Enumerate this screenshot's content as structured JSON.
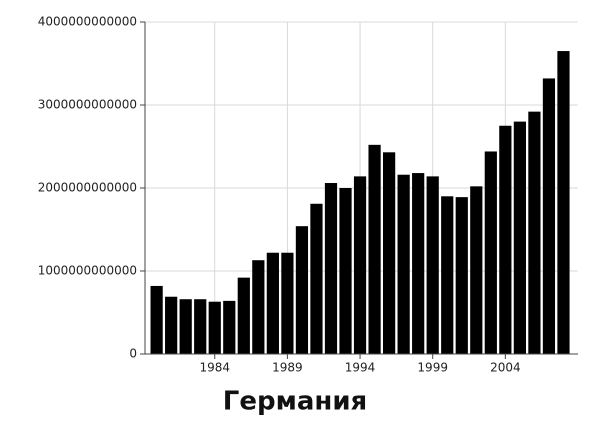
{
  "chart_data": {
    "type": "bar",
    "title": "Германия",
    "x": [
      1980,
      1981,
      1982,
      1983,
      1984,
      1985,
      1986,
      1987,
      1988,
      1989,
      1990,
      1991,
      1992,
      1993,
      1994,
      1995,
      1996,
      1997,
      1998,
      1999,
      2000,
      2001,
      2002,
      2003,
      2004,
      2005,
      2006,
      2007,
      2008
    ],
    "values": [
      820000000000,
      690000000000,
      660000000000,
      660000000000,
      630000000000,
      640000000000,
      920000000000,
      1130000000000,
      1220000000000,
      1220000000000,
      1540000000000,
      1810000000000,
      2060000000000,
      2000000000000,
      2140000000000,
      2520000000000,
      2430000000000,
      2160000000000,
      2180000000000,
      2140000000000,
      1900000000000,
      1890000000000,
      2020000000000,
      2440000000000,
      2750000000000,
      2800000000000,
      2920000000000,
      3320000000000,
      3650000000000
    ],
    "color": "#000000",
    "xlim": [
      1979.2,
      2009
    ],
    "xticks": [
      1984,
      1989,
      1994,
      1999,
      2004
    ],
    "ylim": [
      0,
      4000000000000
    ],
    "yticks": [
      0,
      1000000000000,
      2000000000000,
      3000000000000,
      4000000000000
    ],
    "grid": true
  }
}
